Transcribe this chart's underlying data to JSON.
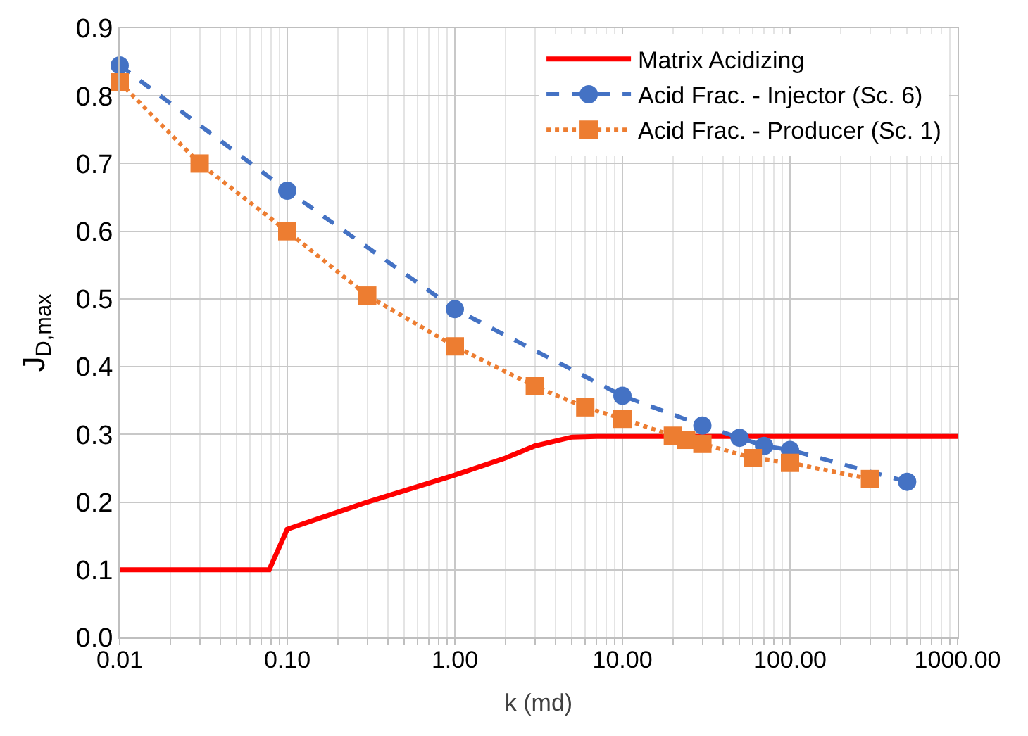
{
  "chart_data": {
    "type": "line",
    "xlabel": "k (md)",
    "ylabel": "J$_{D,max}$",
    "log": "x",
    "grid": true,
    "legend": "top right",
    "xlim": [
      0.01,
      1000
    ],
    "xticks": [
      {
        "value": 0.01,
        "label": "0.01"
      },
      {
        "value": 0.1,
        "label": "0.10"
      },
      {
        "value": 1,
        "label": "1.00"
      },
      {
        "value": 10,
        "label": "10.00"
      },
      {
        "value": 100,
        "label": "100.00"
      },
      {
        "value": 1000,
        "label": "1000.00"
      }
    ],
    "ylim": [
      0,
      0.9
    ],
    "yticks": [
      {
        "value": 0,
        "label": "0.0"
      },
      0.1,
      0.2,
      0.3,
      0.4,
      0.5,
      0.6,
      0.7,
      0.8,
      0.9
    ],
    "series": [
      {
        "name": "Matrix Acidizing",
        "color": "#ff0000",
        "marker": "none",
        "line_style": "solid",
        "x": [
          0.01,
          0.078,
          0.1,
          0.3,
          1,
          2,
          3,
          5,
          7,
          1000
        ],
        "values": [
          0.1,
          0.1,
          0.16,
          0.2,
          0.24,
          0.265,
          0.283,
          0.296,
          0.297,
          0.297
        ]
      },
      {
        "name": "Acid Frac. - Injector (Sc. 6)",
        "color": "#4472c4",
        "marker": "circle",
        "line_style": "dashed",
        "x": [
          0.01,
          0.1,
          1,
          10,
          30,
          50,
          70,
          100,
          500
        ],
        "values": [
          0.845,
          0.66,
          0.485,
          0.357,
          0.313,
          0.295,
          0.283,
          0.277,
          0.23
        ]
      },
      {
        "name": "Acid Frac. - Producer (Sc. 1)",
        "color": "#ed7d31",
        "marker": "square",
        "line_style": "dotted",
        "x": [
          0.01,
          0.03,
          0.1,
          0.3,
          1,
          3,
          6,
          10,
          20,
          24,
          30,
          60,
          100,
          300
        ],
        "values": [
          0.82,
          0.7,
          0.6,
          0.505,
          0.43,
          0.371,
          0.34,
          0.323,
          0.298,
          0.292,
          0.286,
          0.265,
          0.258,
          0.234
        ]
      }
    ]
  }
}
